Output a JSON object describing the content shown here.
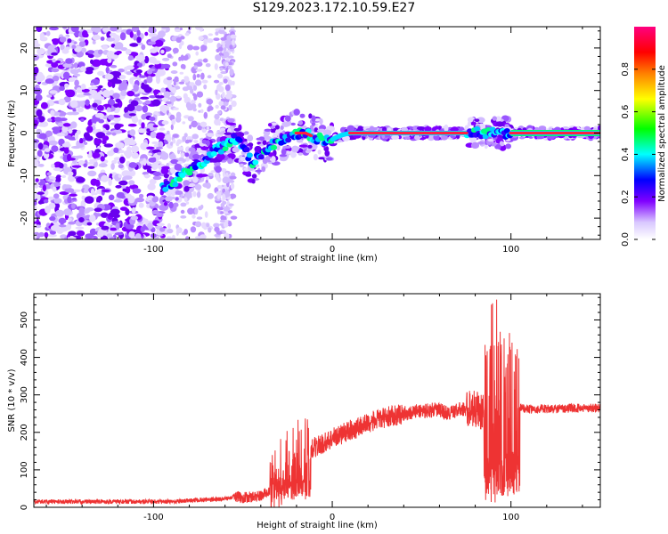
{
  "title": "S129.2023.172.10.59.E27",
  "chart_data": [
    {
      "type": "heatmap",
      "xlabel": "Height of straight line (km)",
      "ylabel": "Frequency (Hz)",
      "xlim": [
        -167,
        150
      ],
      "ylim": [
        -25,
        25
      ],
      "x_ticks": [
        -100,
        0,
        100
      ],
      "y_ticks": [
        -20,
        -10,
        0,
        10,
        20
      ],
      "colorbar": {
        "label": "Normalized spectral amplitude",
        "range": [
          0,
          1
        ],
        "ticks": [
          0.0,
          0.2,
          0.4,
          0.6,
          0.8
        ],
        "colors": [
          "#ffffff",
          "#8000ff",
          "#0000ff",
          "#00ffff",
          "#00ff00",
          "#ffff00",
          "#ff8000",
          "#ff0000",
          "#ff0080"
        ]
      },
      "ridge": [
        [
          -95,
          -13
        ],
        [
          -90,
          -12
        ],
        [
          -85,
          -10
        ],
        [
          -80,
          -9
        ],
        [
          -75,
          -7.5
        ],
        [
          -70,
          -6
        ],
        [
          -65,
          -4
        ],
        [
          -60,
          -3
        ],
        [
          -55,
          -1.5
        ],
        [
          -50,
          -3
        ],
        [
          -45,
          -7
        ],
        [
          -40,
          -5.5
        ],
        [
          -35,
          -3
        ],
        [
          -30,
          -2
        ],
        [
          -25,
          -1
        ],
        [
          -20,
          0
        ],
        [
          -15,
          0
        ],
        [
          -10,
          -1
        ],
        [
          -5,
          -1.5
        ],
        [
          0,
          -1.5
        ],
        [
          5,
          -0.5
        ],
        [
          10,
          0
        ],
        [
          20,
          0
        ],
        [
          30,
          0
        ],
        [
          40,
          0
        ],
        [
          50,
          0
        ],
        [
          60,
          0
        ],
        [
          70,
          0
        ],
        [
          80,
          0
        ],
        [
          90,
          0
        ],
        [
          100,
          0
        ],
        [
          110,
          0
        ],
        [
          120,
          0
        ],
        [
          130,
          0
        ],
        [
          140,
          0
        ],
        [
          150,
          0
        ]
      ]
    },
    {
      "type": "line",
      "xlabel": "Height of straight line (km)",
      "ylabel": "SNR (10 * v/v)",
      "xlim": [
        -167,
        150
      ],
      "ylim": [
        0,
        570
      ],
      "x_ticks": [
        -100,
        0,
        100
      ],
      "y_ticks": [
        0,
        100,
        200,
        300,
        400,
        500
      ],
      "color": "#ee3333",
      "envelope": [
        [
          -167,
          15
        ],
        [
          -120,
          15
        ],
        [
          -90,
          15
        ],
        [
          -80,
          18
        ],
        [
          -70,
          20
        ],
        [
          -60,
          22
        ],
        [
          -55,
          30
        ],
        [
          -50,
          25
        ],
        [
          -40,
          30
        ],
        [
          -35,
          45
        ],
        [
          -30,
          70
        ],
        [
          -25,
          110
        ],
        [
          -20,
          130
        ],
        [
          -15,
          145
        ],
        [
          -10,
          160
        ],
        [
          -5,
          170
        ],
        [
          0,
          185
        ],
        [
          10,
          205
        ],
        [
          20,
          225
        ],
        [
          30,
          240
        ],
        [
          40,
          250
        ],
        [
          50,
          258
        ],
        [
          60,
          260
        ],
        [
          65,
          250
        ],
        [
          70,
          260
        ],
        [
          75,
          262
        ],
        [
          80,
          265
        ],
        [
          85,
          250
        ],
        [
          90,
          240
        ],
        [
          95,
          245
        ],
        [
          100,
          255
        ],
        [
          105,
          265
        ],
        [
          110,
          262
        ],
        [
          120,
          262
        ],
        [
          130,
          264
        ],
        [
          140,
          265
        ],
        [
          150,
          265
        ]
      ],
      "noise_bands": [
        [
          -167,
          -55,
          6
        ],
        [
          -55,
          -35,
          15
        ],
        [
          -35,
          -12,
          110
        ],
        [
          -12,
          40,
          28
        ],
        [
          40,
          75,
          20
        ],
        [
          75,
          85,
          50
        ],
        [
          85,
          105,
          230
        ],
        [
          105,
          150,
          12
        ]
      ]
    }
  ]
}
